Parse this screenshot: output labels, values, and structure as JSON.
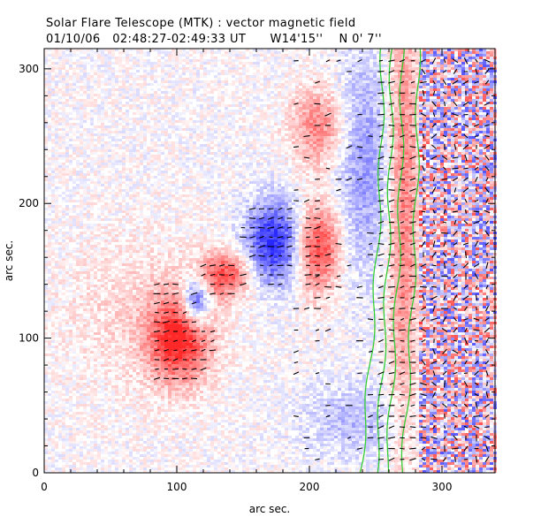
{
  "chart_data": {
    "type": "heatmap",
    "title": "Solar Flare Telescope (MTK) : vector magnetic field",
    "subtitle_parts": [
      "01/10/06",
      "02:48:27-02:49:33 UT",
      "W14'15''",
      "N 0' 7''"
    ],
    "xlabel": "arc sec.",
    "ylabel": "arc sec.",
    "xlim": [
      0,
      340
    ],
    "ylim": [
      0,
      315
    ],
    "x_ticks": [
      0,
      100,
      200,
      300
    ],
    "y_ticks": [
      0,
      100,
      200,
      300
    ],
    "colors": {
      "positive": "#ff2020",
      "negative": "#2020ff",
      "contour": "#33cc33",
      "vector": "#000000",
      "frame": "#000000"
    },
    "positive_blobs": [
      {
        "x": 100,
        "y": 100,
        "sx": 16,
        "sy": 22,
        "amp": 1.0
      },
      {
        "x": 135,
        "y": 148,
        "sx": 14,
        "sy": 12,
        "amp": 0.8
      },
      {
        "x": 205,
        "y": 168,
        "sx": 12,
        "sy": 22,
        "amp": 0.9
      },
      {
        "x": 205,
        "y": 258,
        "sx": 14,
        "sy": 20,
        "amp": 0.55
      },
      {
        "x": 70,
        "y": 120,
        "sx": 40,
        "sy": 40,
        "amp": 0.18
      },
      {
        "x": 270,
        "y": 200,
        "sx": 8,
        "sy": 120,
        "amp": 0.6
      }
    ],
    "negative_blobs": [
      {
        "x": 113,
        "y": 128,
        "sx": 7,
        "sy": 12,
        "amp": 1.0
      },
      {
        "x": 172,
        "y": 172,
        "sx": 15,
        "sy": 22,
        "amp": 1.0
      },
      {
        "x": 240,
        "y": 230,
        "sx": 14,
        "sy": 60,
        "amp": 0.45
      },
      {
        "x": 230,
        "y": 40,
        "sx": 25,
        "sy": 20,
        "amp": 0.3
      }
    ],
    "limb_contours_x": [
      255,
      262,
      270,
      282
    ],
    "vector_regions": [
      {
        "x0": 85,
        "x1": 145,
        "y0": 70,
        "y1": 160
      },
      {
        "x0": 150,
        "x1": 210,
        "y0": 140,
        "y1": 200
      },
      {
        "x0": 190,
        "x1": 340,
        "y0": 10,
        "y1": 310
      }
    ]
  }
}
